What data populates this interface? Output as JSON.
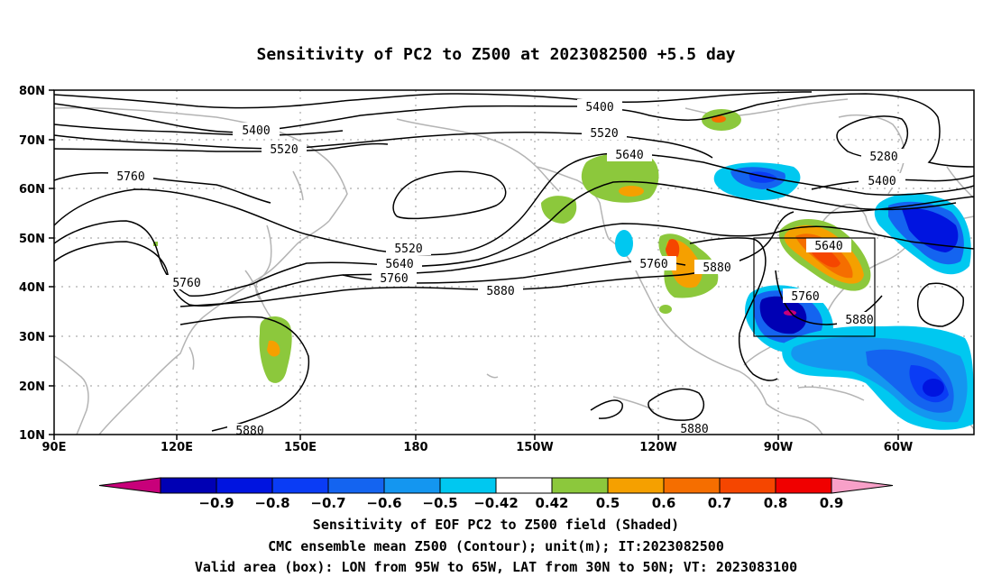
{
  "title": "Sensitivity of PC2 to Z500 at 2023082500 +5.5 day",
  "map": {
    "lon_range": [
      90,
      290
    ],
    "lat_range": [
      10,
      80
    ],
    "lon_ticks": [
      "90E",
      "120E",
      "150E",
      "180",
      "150W",
      "120W",
      "90W",
      "60W"
    ],
    "lat_ticks": [
      "80N",
      "70N",
      "60N",
      "50N",
      "40N",
      "30N",
      "20N",
      "10N"
    ],
    "valid_box": {
      "lon_west": -95,
      "lon_east": -65,
      "lat_south": 30,
      "lat_north": 50
    },
    "contour_labels": [
      "5400",
      "5520",
      "5640",
      "5760",
      "5880",
      "5280"
    ]
  },
  "colorbar": {
    "labels": [
      "-0.9",
      "-0.8",
      "-0.7",
      "-0.6",
      "-0.5",
      "-0.42",
      "0.42",
      "0.5",
      "0.6",
      "0.7",
      "0.8",
      "0.9"
    ],
    "colors": [
      "#c8007a",
      "#0000b4",
      "#0014e0",
      "#0a3cf5",
      "#1464f0",
      "#1496f0",
      "#00c8f0",
      "#ffffff",
      "#8cc83c",
      "#f5a000",
      "#f56e00",
      "#f54600",
      "#f00000",
      "#f8a0c8"
    ]
  },
  "captions": {
    "line1": "Sensitivity of EOF PC2 to Z500 field (Shaded)",
    "line2": "CMC ensemble mean Z500 (Contour); unit(m); IT:2023082500",
    "line3": "Valid area (box): LON from 95W to 65W, LAT from 30N to 50N; VT: 2023083100"
  }
}
